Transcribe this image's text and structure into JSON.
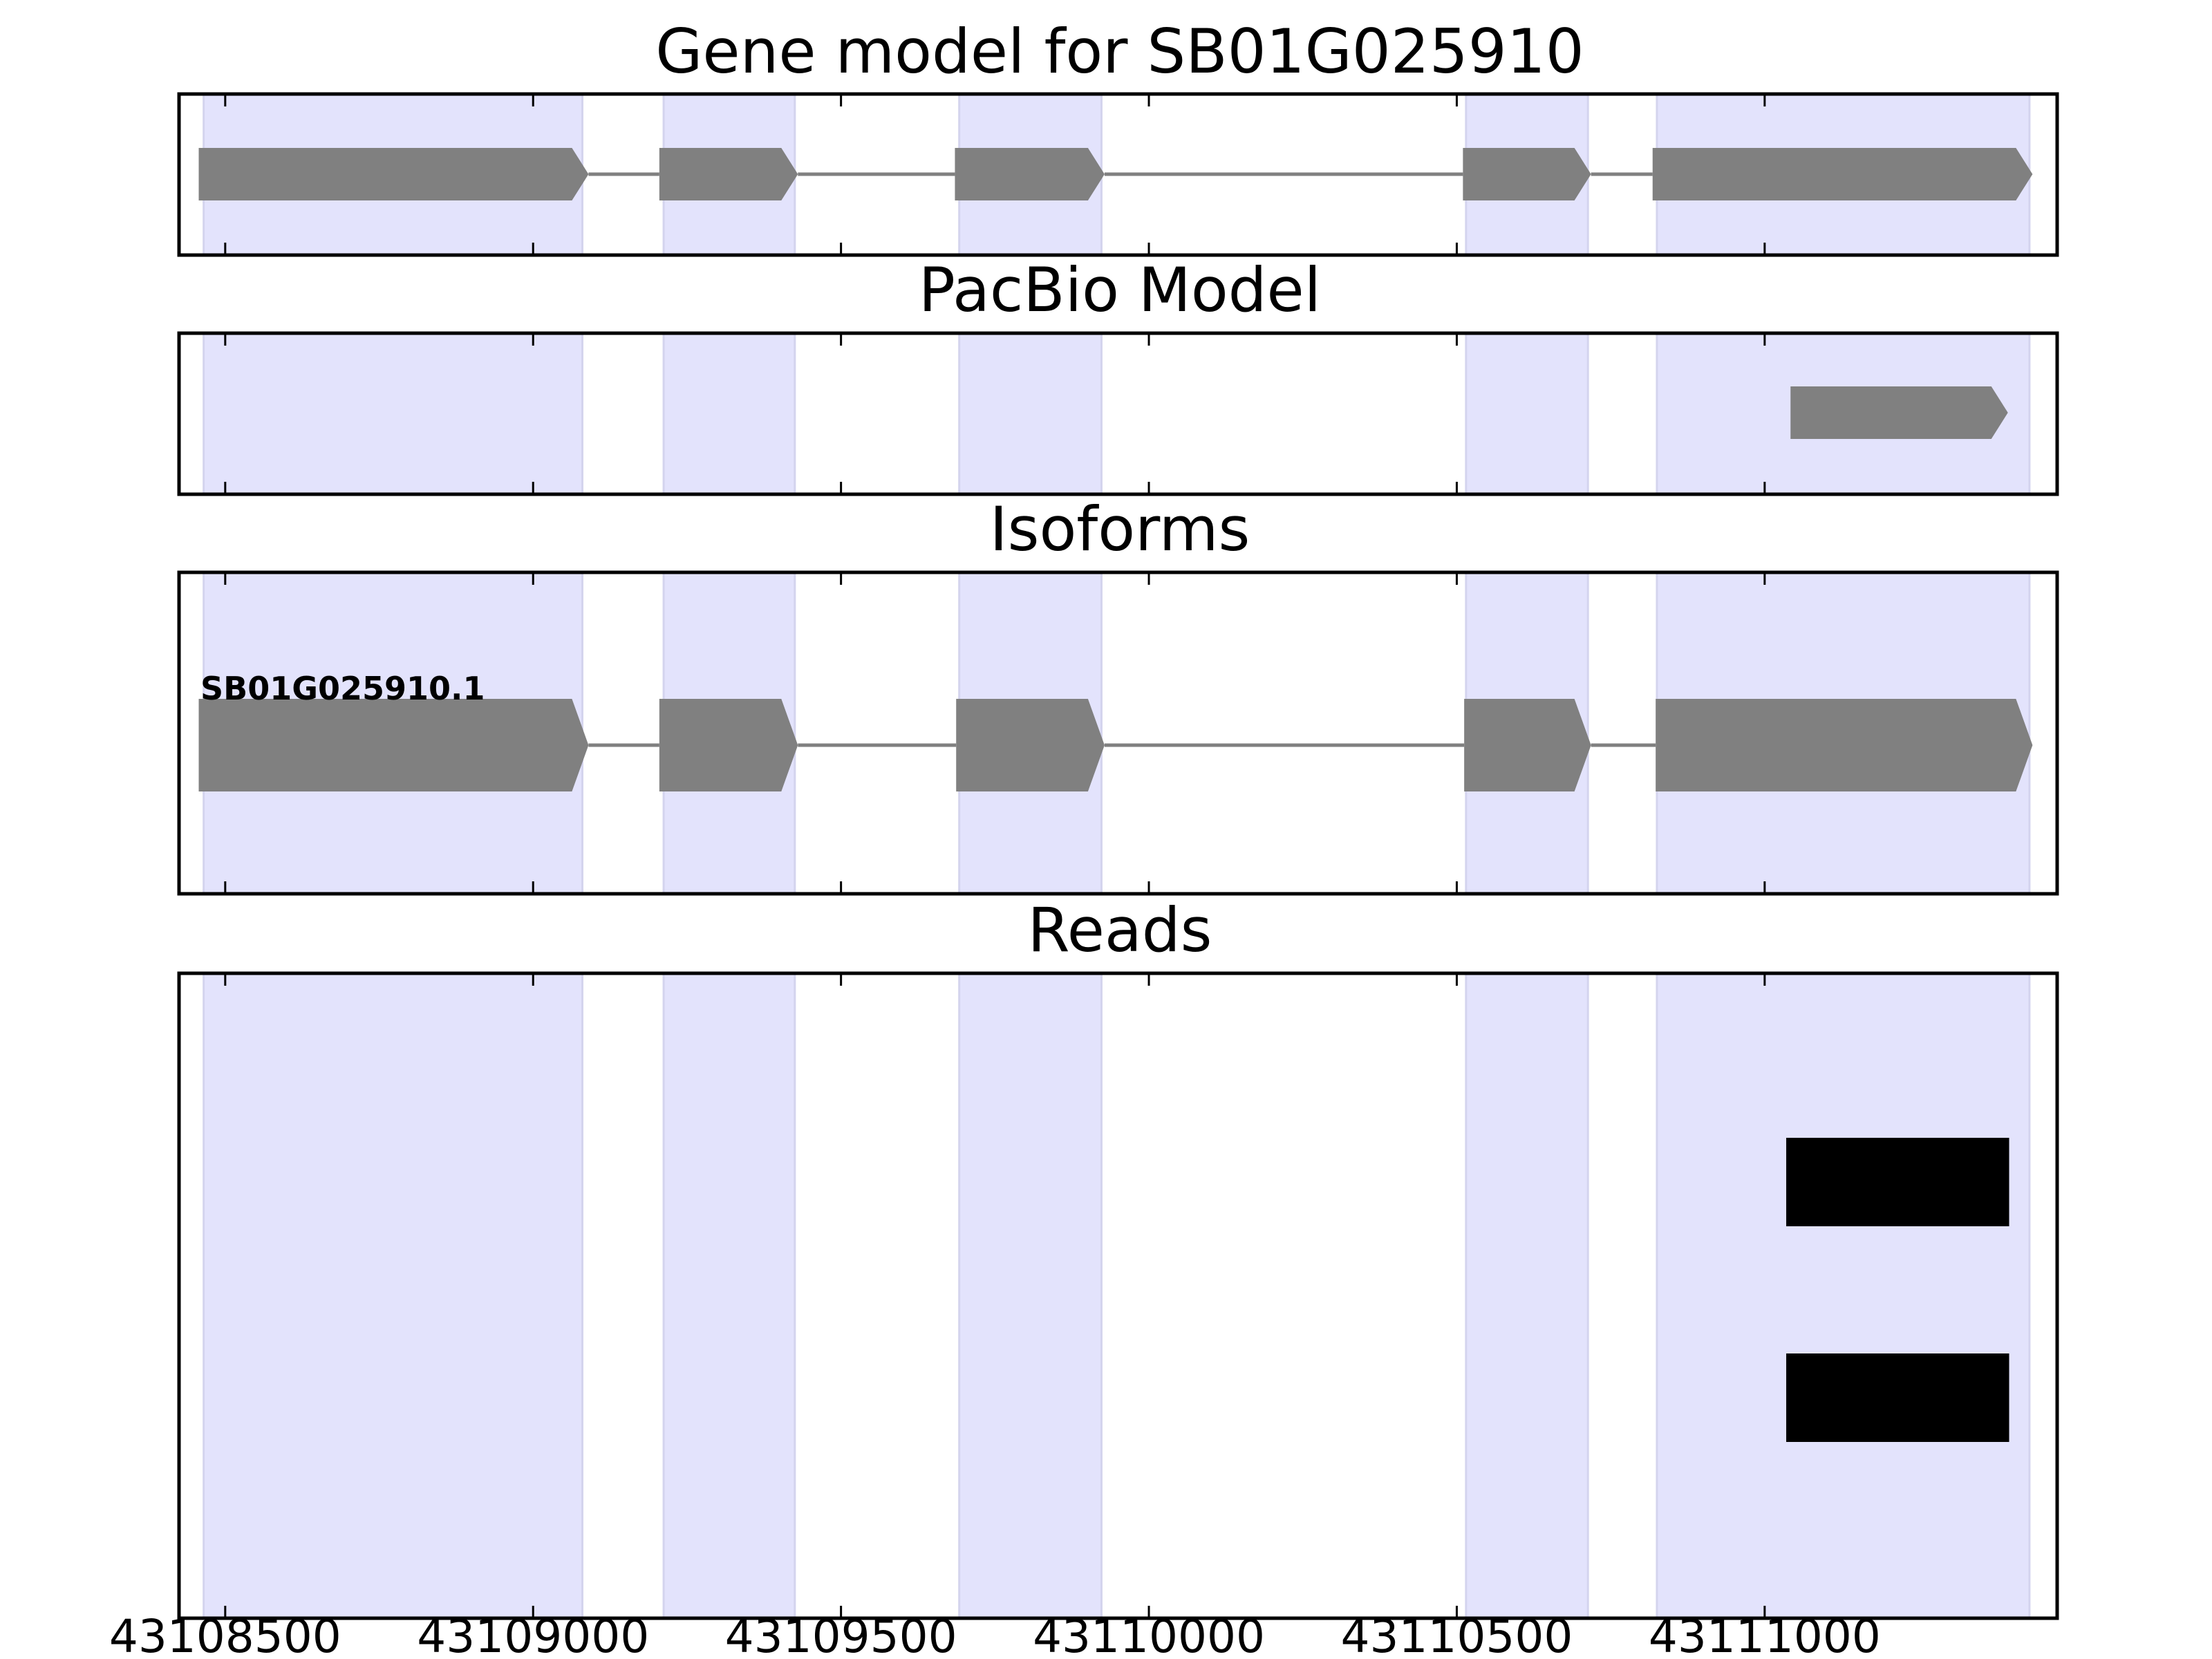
{
  "chart_data": {
    "type": "gene-track",
    "title": "Gene model for SB01G025910",
    "x_ticks": [
      43108500,
      43109000,
      43109500,
      43110000,
      43110500,
      43111000
    ],
    "x_tick_labels": [
      "43108500",
      "43109000",
      "43109500",
      "43110000",
      "43110500",
      "43111000"
    ],
    "xlim": [
      43108425,
      43111475
    ],
    "exon_bands": [
      [
        43108465,
        43109080
      ],
      [
        43109212,
        43109425
      ],
      [
        43109692,
        43109923
      ],
      [
        43110515,
        43110713
      ],
      [
        43110825,
        43111430
      ]
    ],
    "panels": [
      {
        "title": "Gene model for SB01G025910",
        "exons": [
          [
            43108457,
            43109090
          ],
          [
            43109205,
            43109430
          ],
          [
            43109685,
            43109928
          ],
          [
            43110510,
            43110718
          ],
          [
            43110818,
            43111435
          ]
        ]
      },
      {
        "title": "PacBio Model",
        "exons": [
          [
            43111042,
            43111395
          ]
        ]
      },
      {
        "title": "Isoforms",
        "isoforms": [
          {
            "name": "SB01G025910.1",
            "exons": [
              [
                43108457,
                43109090
              ],
              [
                43109205,
                43109430
              ],
              [
                43109687,
                43109928
              ],
              [
                43110512,
                43110718
              ],
              [
                43110823,
                43111435
              ]
            ]
          }
        ]
      },
      {
        "title": "Reads",
        "reads": [
          [
            43111035,
            43111397
          ],
          [
            43111035,
            43111397
          ]
        ]
      }
    ],
    "colors": {
      "exon": "#808080",
      "intron": "#808080",
      "read": "#000000",
      "band": "#e3e3fc"
    }
  }
}
